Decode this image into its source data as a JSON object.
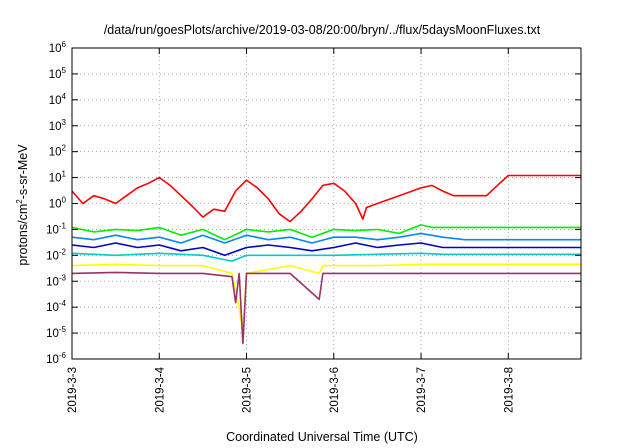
{
  "chart_data": {
    "type": "line",
    "title": "/data/run/goesPlots/archive/2019-03-08/20:00/bryn/../flux/5daysMoonFluxes.txt",
    "xlabel": "Coordinated Universal Time (UTC)",
    "ylabel": {
      "prefix": "protons/cm",
      "sup": "2",
      "suffix": "-s-sr-MeV"
    },
    "y_scale": "log",
    "ylim": [
      1e-06,
      1000000.0
    ],
    "y_ticks": [
      {
        "value": 1e-06,
        "base": "10",
        "exp": "-6"
      },
      {
        "value": 1e-05,
        "base": "10",
        "exp": "-5"
      },
      {
        "value": 0.0001,
        "base": "10",
        "exp": "-4"
      },
      {
        "value": 0.001,
        "base": "10",
        "exp": "-3"
      },
      {
        "value": 0.01,
        "base": "10",
        "exp": "-2"
      },
      {
        "value": 0.1,
        "base": "10",
        "exp": "-1"
      },
      {
        "value": 1,
        "base": "10",
        "exp": "0"
      },
      {
        "value": 10,
        "base": "10",
        "exp": "1"
      },
      {
        "value": 100,
        "base": "10",
        "exp": "2"
      },
      {
        "value": 1000,
        "base": "10",
        "exp": "3"
      },
      {
        "value": 10000,
        "base": "10",
        "exp": "4"
      },
      {
        "value": 100000,
        "base": "10",
        "exp": "5"
      },
      {
        "value": 1000000,
        "base": "10",
        "exp": "6"
      }
    ],
    "x_axis_type": "date",
    "xlim": [
      "2019-03-03T00:00",
      "2019-03-08T20:00"
    ],
    "x_ticks": [
      {
        "value": "2019-03-03T00:00",
        "label": "2019-3-3"
      },
      {
        "value": "2019-03-04T00:00",
        "label": "2019-3-4"
      },
      {
        "value": "2019-03-05T00:00",
        "label": "2019-3-5"
      },
      {
        "value": "2019-03-06T00:00",
        "label": "2019-3-6"
      },
      {
        "value": "2019-03-07T00:00",
        "label": "2019-3-7"
      },
      {
        "value": "2019-03-08T00:00",
        "label": "2019-3-8"
      }
    ],
    "grid": true,
    "legend": "none",
    "series": [
      {
        "color": "#ff0000",
        "points": [
          [
            "2019-03-03T00:00",
            3
          ],
          [
            "2019-03-03T03:00",
            1
          ],
          [
            "2019-03-03T06:00",
            2
          ],
          [
            "2019-03-03T09:00",
            1.5
          ],
          [
            "2019-03-03T12:00",
            1
          ],
          [
            "2019-03-03T15:00",
            2
          ],
          [
            "2019-03-03T18:00",
            4
          ],
          [
            "2019-03-03T21:00",
            6
          ],
          [
            "2019-03-04T00:00",
            10
          ],
          [
            "2019-03-04T03:00",
            5
          ],
          [
            "2019-03-04T06:00",
            2
          ],
          [
            "2019-03-04T09:00",
            0.8
          ],
          [
            "2019-03-04T12:00",
            0.3
          ],
          [
            "2019-03-04T15:00",
            0.6
          ],
          [
            "2019-03-04T18:00",
            0.5
          ],
          [
            "2019-03-04T21:00",
            3
          ],
          [
            "2019-03-05T00:00",
            8
          ],
          [
            "2019-03-05T03:00",
            4
          ],
          [
            "2019-03-05T06:00",
            1.5
          ],
          [
            "2019-03-05T09:00",
            0.4
          ],
          [
            "2019-03-05T12:00",
            0.2
          ],
          [
            "2019-03-05T15:00",
            0.5
          ],
          [
            "2019-03-05T18:00",
            1.5
          ],
          [
            "2019-03-05T21:00",
            5
          ],
          [
            "2019-03-06T00:00",
            6
          ],
          [
            "2019-03-06T03:00",
            3
          ],
          [
            "2019-03-06T06:00",
            1
          ],
          [
            "2019-03-06T08:00",
            0.25
          ],
          [
            "2019-03-06T09:00",
            0.7
          ],
          [
            "2019-03-06T12:00",
            1
          ],
          [
            "2019-03-06T18:00",
            2
          ],
          [
            "2019-03-07T00:00",
            4
          ],
          [
            "2019-03-07T03:00",
            5
          ],
          [
            "2019-03-07T06:00",
            3
          ],
          [
            "2019-03-07T09:00",
            2
          ],
          [
            "2019-03-07T18:00",
            2
          ],
          [
            "2019-03-07T21:00",
            5
          ],
          [
            "2019-03-08T00:00",
            12
          ],
          [
            "2019-03-08T20:00",
            12
          ]
        ]
      },
      {
        "color": "#00ee00",
        "points": [
          [
            "2019-03-03T00:00",
            0.12
          ],
          [
            "2019-03-03T06:00",
            0.08
          ],
          [
            "2019-03-03T12:00",
            0.1
          ],
          [
            "2019-03-03T18:00",
            0.09
          ],
          [
            "2019-03-04T00:00",
            0.12
          ],
          [
            "2019-03-04T06:00",
            0.06
          ],
          [
            "2019-03-04T12:00",
            0.1
          ],
          [
            "2019-03-04T18:00",
            0.04
          ],
          [
            "2019-03-05T00:00",
            0.1
          ],
          [
            "2019-03-05T06:00",
            0.08
          ],
          [
            "2019-03-05T12:00",
            0.1
          ],
          [
            "2019-03-05T18:00",
            0.05
          ],
          [
            "2019-03-06T00:00",
            0.1
          ],
          [
            "2019-03-06T06:00",
            0.09
          ],
          [
            "2019-03-06T12:00",
            0.1
          ],
          [
            "2019-03-06T18:00",
            0.07
          ],
          [
            "2019-03-07T00:00",
            0.15
          ],
          [
            "2019-03-07T03:00",
            0.12
          ],
          [
            "2019-03-07T06:00",
            0.12
          ],
          [
            "2019-03-08T20:00",
            0.12
          ]
        ]
      },
      {
        "color": "#0088ff",
        "points": [
          [
            "2019-03-03T00:00",
            0.05
          ],
          [
            "2019-03-03T06:00",
            0.04
          ],
          [
            "2019-03-03T12:00",
            0.06
          ],
          [
            "2019-03-03T18:00",
            0.04
          ],
          [
            "2019-03-04T00:00",
            0.05
          ],
          [
            "2019-03-04T06:00",
            0.03
          ],
          [
            "2019-03-04T12:00",
            0.06
          ],
          [
            "2019-03-04T18:00",
            0.03
          ],
          [
            "2019-03-05T00:00",
            0.06
          ],
          [
            "2019-03-05T06:00",
            0.04
          ],
          [
            "2019-03-05T12:00",
            0.05
          ],
          [
            "2019-03-05T18:00",
            0.03
          ],
          [
            "2019-03-06T00:00",
            0.05
          ],
          [
            "2019-03-06T06:00",
            0.05
          ],
          [
            "2019-03-06T12:00",
            0.04
          ],
          [
            "2019-03-06T18:00",
            0.05
          ],
          [
            "2019-03-07T00:00",
            0.07
          ],
          [
            "2019-03-07T06:00",
            0.05
          ],
          [
            "2019-03-07T12:00",
            0.04
          ],
          [
            "2019-03-08T20:00",
            0.04
          ]
        ]
      },
      {
        "color": "#0000cc",
        "points": [
          [
            "2019-03-03T00:00",
            0.025
          ],
          [
            "2019-03-03T06:00",
            0.02
          ],
          [
            "2019-03-03T12:00",
            0.03
          ],
          [
            "2019-03-03T18:00",
            0.02
          ],
          [
            "2019-03-04T00:00",
            0.025
          ],
          [
            "2019-03-04T06:00",
            0.015
          ],
          [
            "2019-03-04T12:00",
            0.02
          ],
          [
            "2019-03-04T18:00",
            0.01
          ],
          [
            "2019-03-05T00:00",
            0.02
          ],
          [
            "2019-03-05T06:00",
            0.025
          ],
          [
            "2019-03-05T12:00",
            0.02
          ],
          [
            "2019-03-05T18:00",
            0.015
          ],
          [
            "2019-03-06T00:00",
            0.02
          ],
          [
            "2019-03-06T06:00",
            0.03
          ],
          [
            "2019-03-06T12:00",
            0.02
          ],
          [
            "2019-03-06T18:00",
            0.025
          ],
          [
            "2019-03-07T00:00",
            0.03
          ],
          [
            "2019-03-07T06:00",
            0.02
          ],
          [
            "2019-03-08T20:00",
            0.02
          ]
        ]
      },
      {
        "color": "#00cccc",
        "points": [
          [
            "2019-03-03T00:00",
            0.012
          ],
          [
            "2019-03-03T12:00",
            0.01
          ],
          [
            "2019-03-04T00:00",
            0.012
          ],
          [
            "2019-03-04T12:00",
            0.01
          ],
          [
            "2019-03-04T20:00",
            0.006
          ],
          [
            "2019-03-05T00:00",
            0.01
          ],
          [
            "2019-03-05T12:00",
            0.01
          ],
          [
            "2019-03-06T00:00",
            0.01
          ],
          [
            "2019-03-06T12:00",
            0.011
          ],
          [
            "2019-03-07T00:00",
            0.012
          ],
          [
            "2019-03-07T06:00",
            0.011
          ],
          [
            "2019-03-08T20:00",
            0.011
          ]
        ]
      },
      {
        "color": "#ffff00",
        "points": [
          [
            "2019-03-03T00:00",
            0.004
          ],
          [
            "2019-03-03T12:00",
            0.0045
          ],
          [
            "2019-03-04T00:00",
            0.004
          ],
          [
            "2019-03-04T12:00",
            0.004
          ],
          [
            "2019-03-04T20:00",
            0.002
          ],
          [
            "2019-03-04T22:00",
            0.0001
          ],
          [
            "2019-03-04T23:00",
            1e-05
          ],
          [
            "2019-03-05T00:00",
            0.002
          ],
          [
            "2019-03-05T12:00",
            0.004
          ],
          [
            "2019-03-05T20:00",
            0.002
          ],
          [
            "2019-03-05T21:00",
            0.004
          ],
          [
            "2019-03-06T12:00",
            0.004
          ],
          [
            "2019-03-07T00:00",
            0.0045
          ],
          [
            "2019-03-08T20:00",
            0.0045
          ]
        ]
      },
      {
        "color": "#993366",
        "points": [
          [
            "2019-03-03T00:00",
            0.002
          ],
          [
            "2019-03-03T12:00",
            0.0022
          ],
          [
            "2019-03-04T00:00",
            0.002
          ],
          [
            "2019-03-04T12:00",
            0.002
          ],
          [
            "2019-03-04T20:00",
            0.0015
          ],
          [
            "2019-03-04T21:00",
            0.00015
          ],
          [
            "2019-03-04T22:00",
            0.002
          ],
          [
            "2019-03-04T23:00",
            4e-06
          ],
          [
            "2019-03-05T00:00",
            0.002
          ],
          [
            "2019-03-05T12:00",
            0.002
          ],
          [
            "2019-03-05T20:00",
            0.0002
          ],
          [
            "2019-03-05T21:00",
            0.002
          ],
          [
            "2019-03-06T12:00",
            0.002
          ],
          [
            "2019-03-07T00:00",
            0.002
          ],
          [
            "2019-03-08T20:00",
            0.002
          ]
        ]
      }
    ]
  }
}
